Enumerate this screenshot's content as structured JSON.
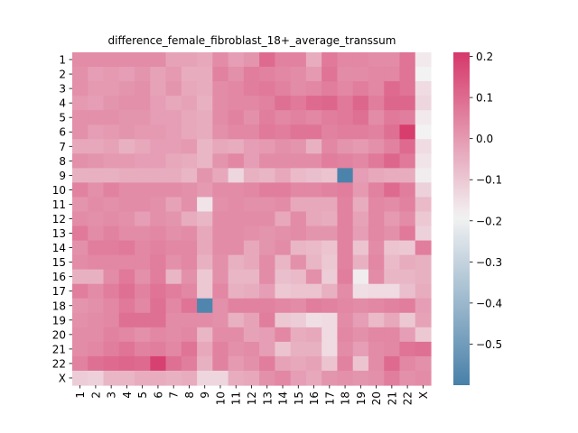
{
  "chart_data": {
    "type": "heatmap",
    "title": "difference_female_fibroblast_18+_average_transsum",
    "rows": [
      "1",
      "2",
      "3",
      "4",
      "5",
      "6",
      "7",
      "8",
      "9",
      "10",
      "11",
      "12",
      "13",
      "14",
      "15",
      "16",
      "17",
      "18",
      "19",
      "20",
      "21",
      "22",
      "X"
    ],
    "cols": [
      "1",
      "2",
      "3",
      "4",
      "5",
      "6",
      "7",
      "8",
      "9",
      "10",
      "11",
      "12",
      "13",
      "14",
      "15",
      "16",
      "17",
      "18",
      "19",
      "20",
      "21",
      "22",
      "X"
    ],
    "values": [
      [
        0.03,
        0.03,
        0.03,
        0.03,
        0.03,
        0.03,
        -0.02,
        -0.02,
        -0.03,
        0.03,
        -0.01,
        0.01,
        0.1,
        0.05,
        0.05,
        -0.04,
        0.07,
        0.04,
        0.04,
        0.03,
        0.03,
        0.08,
        -0.17
      ],
      [
        0.02,
        -0.01,
        0.0,
        -0.01,
        0.01,
        -0.02,
        0.0,
        -0.04,
        -0.04,
        0.05,
        0.02,
        0.06,
        0.05,
        0.04,
        0.03,
        0.0,
        0.08,
        0.03,
        0.03,
        0.04,
        0.04,
        0.08,
        -0.19
      ],
      [
        0.02,
        0.0,
        0.0,
        0.01,
        0.02,
        -0.02,
        0.01,
        -0.03,
        -0.04,
        0.03,
        0.04,
        0.06,
        0.07,
        0.05,
        0.03,
        0.04,
        0.06,
        0.04,
        0.06,
        0.04,
        0.1,
        0.08,
        -0.14
      ],
      [
        0.0,
        -0.01,
        0.01,
        0.02,
        0.02,
        -0.01,
        -0.03,
        -0.02,
        -0.05,
        0.03,
        0.04,
        0.04,
        0.05,
        0.09,
        0.07,
        0.1,
        0.11,
        0.07,
        0.11,
        0.06,
        0.11,
        0.11,
        -0.13
      ],
      [
        0.02,
        0.02,
        0.02,
        0.01,
        0.01,
        -0.01,
        -0.01,
        -0.03,
        -0.04,
        0.03,
        0.05,
        0.02,
        0.06,
        0.04,
        0.05,
        0.04,
        0.06,
        0.07,
        0.09,
        0.03,
        0.07,
        0.06,
        -0.17
      ],
      [
        0.02,
        -0.01,
        0.0,
        0.01,
        0.0,
        0.0,
        -0.01,
        -0.03,
        -0.04,
        0.02,
        0.04,
        0.04,
        0.07,
        0.06,
        0.08,
        0.08,
        0.05,
        0.06,
        0.06,
        0.05,
        0.09,
        0.2,
        -0.19
      ],
      [
        -0.03,
        -0.03,
        -0.02,
        -0.05,
        -0.03,
        -0.01,
        -0.01,
        0.0,
        -0.06,
        -0.03,
        -0.04,
        -0.01,
        0.0,
        0.02,
        0.01,
        -0.05,
        0.04,
        0.01,
        0.0,
        0.02,
        0.05,
        0.1,
        -0.14
      ],
      [
        0.02,
        0.01,
        0.0,
        0.0,
        -0.01,
        -0.01,
        -0.03,
        -0.04,
        -0.06,
        0.01,
        0.04,
        -0.01,
        0.03,
        0.03,
        0.03,
        0.03,
        0.06,
        0.05,
        0.04,
        0.07,
        0.11,
        0.07,
        -0.16
      ],
      [
        -0.05,
        -0.05,
        -0.05,
        -0.04,
        -0.04,
        -0.04,
        -0.04,
        -0.06,
        0.01,
        -0.03,
        -0.13,
        -0.05,
        -0.06,
        -0.03,
        -0.07,
        -0.08,
        -0.09,
        -0.59,
        -0.01,
        -0.03,
        -0.04,
        -0.04,
        -0.18
      ],
      [
        0.05,
        0.02,
        0.05,
        0.03,
        0.03,
        0.03,
        0.03,
        0.02,
        0.0,
        0.03,
        0.03,
        0.04,
        0.06,
        0.06,
        0.04,
        0.04,
        0.05,
        0.06,
        0.0,
        0.05,
        0.1,
        0.06,
        -0.12
      ],
      [
        0.01,
        0.03,
        0.02,
        0.03,
        0.03,
        0.02,
        -0.02,
        0.02,
        -0.16,
        0.02,
        0.03,
        0.02,
        0.02,
        0.03,
        -0.03,
        -0.03,
        -0.03,
        0.05,
        -0.04,
        0.04,
        0.03,
        0.05,
        -0.07
      ],
      [
        0.03,
        0.02,
        0.03,
        0.02,
        -0.01,
        0.02,
        0.01,
        -0.04,
        -0.06,
        0.03,
        0.03,
        0.03,
        0.03,
        -0.03,
        0.03,
        -0.03,
        -0.04,
        0.05,
        -0.02,
        0.04,
        0.0,
        0.03,
        -0.1
      ],
      [
        0.07,
        0.03,
        0.05,
        0.03,
        0.03,
        0.04,
        0.02,
        0.03,
        -0.03,
        0.03,
        0.03,
        0.02,
        0.01,
        0.02,
        0.03,
        0.01,
        0.01,
        0.05,
        -0.01,
        0.04,
        0.02,
        0.07,
        -0.12
      ],
      [
        0.02,
        0.06,
        0.06,
        0.07,
        0.04,
        0.05,
        0.04,
        0.04,
        -0.03,
        0.03,
        0.03,
        -0.03,
        0.01,
        0.03,
        -0.06,
        -0.07,
        -0.09,
        0.05,
        -0.09,
        0.03,
        -0.09,
        -0.1,
        0.06
      ],
      [
        0.03,
        0.04,
        0.04,
        0.04,
        0.04,
        0.06,
        0.02,
        0.04,
        -0.05,
        0.02,
        -0.05,
        -0.03,
        0.03,
        -0.06,
        0.02,
        -0.06,
        -0.1,
        0.05,
        -0.05,
        0.04,
        -0.07,
        -0.04,
        -0.05
      ],
      [
        -0.05,
        -0.05,
        0.03,
        0.07,
        0.02,
        0.06,
        -0.06,
        0.02,
        -0.1,
        0.02,
        -0.06,
        -0.06,
        0.03,
        -0.08,
        -0.07,
        0.02,
        -0.11,
        0.06,
        -0.18,
        0.03,
        -0.06,
        -0.06,
        -0.05
      ],
      [
        0.06,
        0.03,
        0.06,
        0.09,
        0.05,
        0.08,
        0.06,
        0.04,
        -0.1,
        0.04,
        -0.05,
        -0.04,
        -0.01,
        -0.1,
        -0.09,
        -0.09,
        -0.05,
        0.03,
        -0.15,
        -0.14,
        -0.14,
        -0.08,
        -0.04
      ],
      [
        0.01,
        0.02,
        0.04,
        0.07,
        0.04,
        0.09,
        0.04,
        0.08,
        -0.58,
        0.02,
        0.05,
        0.05,
        0.05,
        0.04,
        0.03,
        0.06,
        0.05,
        0.04,
        0.03,
        0.04,
        0.05,
        0.06,
        -0.01
      ],
      [
        0.02,
        0.03,
        0.04,
        0.09,
        0.09,
        0.09,
        0.03,
        0.03,
        0.03,
        0.02,
        -0.05,
        -0.02,
        0.06,
        -0.1,
        -0.11,
        -0.15,
        -0.14,
        0.03,
        -0.01,
        -0.07,
        -0.03,
        -0.1,
        -0.02
      ],
      [
        0.03,
        0.03,
        0.05,
        0.04,
        0.02,
        0.04,
        0.03,
        0.04,
        -0.06,
        0.03,
        0.03,
        -0.02,
        -0.01,
        0.04,
        -0.04,
        -0.03,
        -0.14,
        0.04,
        0.02,
        0.04,
        0.04,
        -0.01,
        -0.1
      ],
      [
        0.03,
        0.04,
        0.06,
        0.08,
        0.05,
        0.06,
        0.04,
        0.08,
        -0.03,
        0.05,
        0.02,
        0.03,
        -0.01,
        -0.09,
        -0.05,
        -0.05,
        -0.14,
        0.03,
        -0.01,
        0.03,
        0.04,
        0.08,
        0.09
      ],
      [
        0.05,
        0.09,
        0.1,
        0.11,
        0.1,
        0.19,
        0.09,
        0.06,
        -0.05,
        0.05,
        0.0,
        0.02,
        0.06,
        -0.02,
        -0.03,
        -0.02,
        -0.09,
        0.05,
        -0.09,
        0.03,
        0.1,
        0.04,
        0.02
      ],
      [
        -0.11,
        -0.12,
        -0.06,
        -0.06,
        -0.04,
        -0.04,
        -0.05,
        -0.04,
        -0.13,
        -0.13,
        -0.04,
        -0.03,
        0.02,
        0.04,
        -0.01,
        -0.03,
        0.01,
        0.02,
        0.01,
        0.02,
        0.06,
        0.02,
        0.03
      ]
    ],
    "vmin": -0.6,
    "vmax": 0.21,
    "colorbar": {
      "ticks": [
        0.2,
        0.1,
        0.0,
        -0.1,
        -0.2,
        -0.3,
        -0.4,
        -0.5
      ],
      "tick_labels": [
        "0.2",
        "0.1",
        "0.0",
        "−0.1",
        "−0.2",
        "−0.3",
        "−0.4",
        "−0.5"
      ]
    },
    "colormap": {
      "low": "#4880a9",
      "mid": "#f2f2f2",
      "high": "#d6386a",
      "mid_value": -0.19
    }
  }
}
